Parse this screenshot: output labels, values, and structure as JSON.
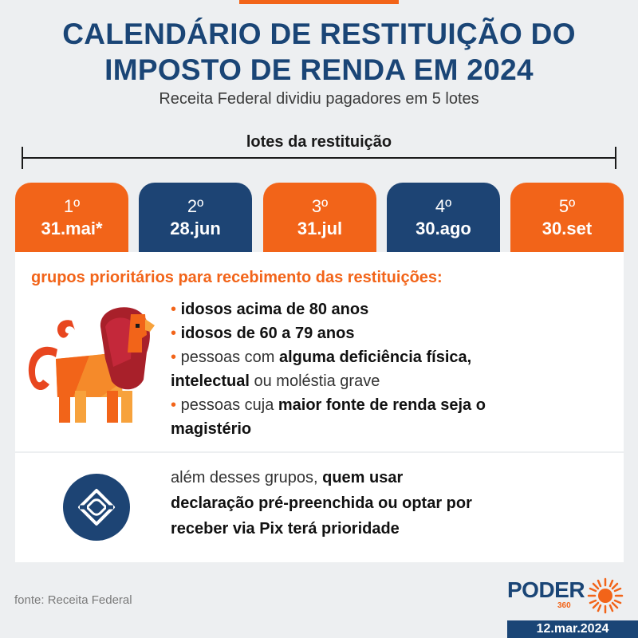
{
  "header": {
    "title_line1": "CALENDÁRIO DE RESTITUIÇÃO DO",
    "title_line2": "IMPOSTO DE RENDA EM 2024",
    "subtitle": "Receita Federal dividiu pagadores em 5 lotes"
  },
  "timeline": {
    "label": "lotes da restituição",
    "lots": [
      {
        "num": "1º",
        "date": "31.mai*",
        "color": "#f26419"
      },
      {
        "num": "2º",
        "date": "28.jun",
        "color": "#1d4474"
      },
      {
        "num": "3º",
        "date": "31.jul",
        "color": "#f26419"
      },
      {
        "num": "4º",
        "date": "30.ago",
        "color": "#1d4474"
      },
      {
        "num": "5º",
        "date": "30.set",
        "color": "#f26419"
      }
    ]
  },
  "priority": {
    "title": "grupos prioritários para recebimento das restituições:",
    "bullet_marker": "•",
    "item1": "idosos acima de 80 anos",
    "item2": "idosos de 60 a 79 anos",
    "item3_pre": "pessoas com ",
    "item3_bold1": "alguma deficiência física,",
    "item3_bold2": "intelectual",
    "item3_post": " ou moléstia grave",
    "item4_pre": "pessoas cuja ",
    "item4_bold1": "maior fonte de renda seja o",
    "item4_bold2": "magistério",
    "icon": "lion-icon"
  },
  "pix": {
    "icon": "pix-icon",
    "line1_pre": "além desses grupos, ",
    "line1_bold": "quem usar",
    "line2_bold": "declaração pré-preenchida ou optar por",
    "line3_bold": "receber via Pix terá prioridade"
  },
  "footer": {
    "source": "fonte: Receita Federal",
    "logo_text": "PODER",
    "logo_num": "360",
    "date": "12.mar.2024"
  },
  "colors": {
    "orange": "#f26419",
    "navy": "#1d4474",
    "title_blue": "#1a4576"
  }
}
